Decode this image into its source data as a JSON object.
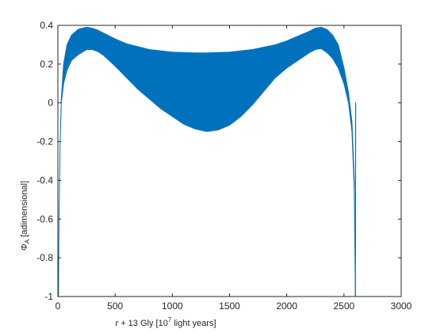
{
  "chart_data": {
    "type": "area",
    "title": "",
    "xlabel_parts": {
      "italic": "r",
      "pre": " + 13 Gly [10",
      "sup": "7",
      "post": " light years]"
    },
    "ylabel_parts": {
      "main": "Φ",
      "sub": "A",
      "post": " [adimensional]"
    },
    "xlim": [
      0,
      3000
    ],
    "ylim": [
      -1,
      0.4
    ],
    "x_ticks": [
      0,
      500,
      1000,
      1500,
      2000,
      2500,
      3000
    ],
    "x_tick_labels": [
      "0",
      "500",
      "1000",
      "1500",
      "2000",
      "2500",
      "3000"
    ],
    "y_ticks": [
      0.4,
      0.2,
      0,
      -0.2,
      -0.4,
      -0.6,
      -0.8,
      -1
    ],
    "y_tick_labels": [
      "0.4",
      "0.2",
      "0",
      "-0.2",
      "-0.4",
      "-0.6",
      "-0.8",
      "-1"
    ],
    "grid": false,
    "series_color": "#0072BD",
    "upper_envelope": {
      "x": [
        5,
        10,
        20,
        30,
        50,
        80,
        120,
        180,
        250,
        300,
        350,
        400,
        500,
        600,
        800,
        1000,
        1200,
        1300,
        1500,
        1700,
        1900,
        2000,
        2100,
        2200,
        2250,
        2300,
        2350,
        2400,
        2450,
        2500,
        2540,
        2570,
        2590,
        2600
      ],
      "y": [
        -1.0,
        -0.6,
        -0.2,
        0.02,
        0.2,
        0.3,
        0.35,
        0.38,
        0.39,
        0.385,
        0.375,
        0.36,
        0.33,
        0.305,
        0.275,
        0.262,
        0.258,
        0.258,
        0.262,
        0.275,
        0.3,
        0.32,
        0.345,
        0.37,
        0.385,
        0.39,
        0.38,
        0.35,
        0.3,
        0.18,
        0.05,
        -0.1,
        -0.4,
        -1.0
      ]
    },
    "lower_envelope": {
      "x": [
        5,
        10,
        20,
        30,
        50,
        80,
        120,
        180,
        250,
        300,
        350,
        400,
        500,
        600,
        700,
        800,
        900,
        1000,
        1100,
        1200,
        1300,
        1400,
        1500,
        1600,
        1700,
        1800,
        1900,
        2000,
        2100,
        2200,
        2250,
        2300,
        2350,
        2400,
        2450,
        2500,
        2540,
        2570,
        2590,
        2600
      ],
      "y": [
        -1.0,
        -0.6,
        -0.2,
        0.0,
        0.1,
        0.17,
        0.22,
        0.25,
        0.275,
        0.275,
        0.265,
        0.245,
        0.19,
        0.13,
        0.07,
        0.02,
        -0.03,
        -0.07,
        -0.11,
        -0.135,
        -0.148,
        -0.14,
        -0.115,
        -0.07,
        -0.01,
        0.06,
        0.13,
        0.18,
        0.22,
        0.26,
        0.275,
        0.28,
        0.26,
        0.23,
        0.18,
        0.1,
        0.0,
        -0.15,
        -0.45,
        -1.0
      ]
    },
    "spike": {
      "x": [
        2600,
        2602,
        2604
      ],
      "y": [
        -1.0,
        0.0,
        0.0
      ]
    }
  }
}
